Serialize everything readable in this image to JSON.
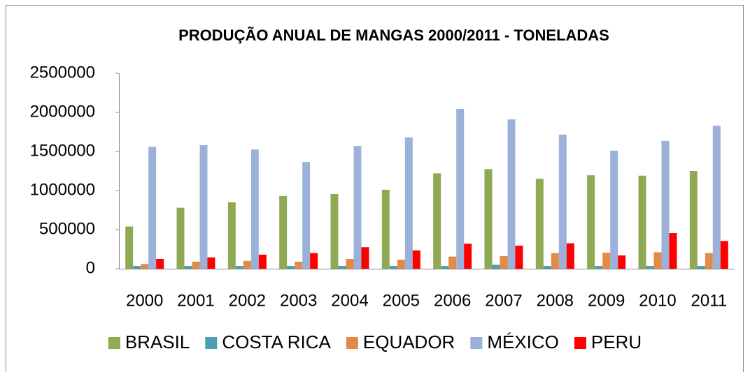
{
  "chart_data": {
    "type": "bar",
    "title": "PRODUÇÃO ANUAL DE MANGAS 2000/2011 - TONELADAS",
    "categories": [
      "2000",
      "2001",
      "2002",
      "2003",
      "2004",
      "2005",
      "2006",
      "2007",
      "2008",
      "2009",
      "2010",
      "2011"
    ],
    "series": [
      {
        "name": "BRASIL",
        "color": "#8faa54",
        "values": [
          540000,
          780000,
          850000,
          930000,
          955000,
          1010000,
          1220000,
          1275000,
          1150000,
          1195000,
          1190000,
          1250000
        ]
      },
      {
        "name": "COSTA RICA",
        "color": "#4aa0b0",
        "values": [
          35000,
          35000,
          35000,
          35000,
          35000,
          35000,
          35000,
          50000,
          35000,
          35000,
          35000,
          35000
        ]
      },
      {
        "name": "EQUADOR",
        "color": "#e38b46",
        "values": [
          60000,
          90000,
          100000,
          90000,
          125000,
          115000,
          155000,
          160000,
          200000,
          205000,
          210000,
          200000
        ]
      },
      {
        "name": "MÉXICO",
        "color": "#9cb1d9",
        "values": [
          1560000,
          1580000,
          1525000,
          1365000,
          1570000,
          1680000,
          2045000,
          1910000,
          1715000,
          1510000,
          1635000,
          1830000
        ]
      },
      {
        "name": "PERU",
        "color": "#ff0000",
        "values": [
          125000,
          145000,
          180000,
          200000,
          275000,
          235000,
          320000,
          295000,
          325000,
          170000,
          455000,
          355000
        ]
      }
    ],
    "ylim": [
      0,
      2500000
    ],
    "yticks": [
      0,
      500000,
      1000000,
      1500000,
      2000000,
      2500000
    ],
    "grid": false,
    "legend": "bottom"
  }
}
